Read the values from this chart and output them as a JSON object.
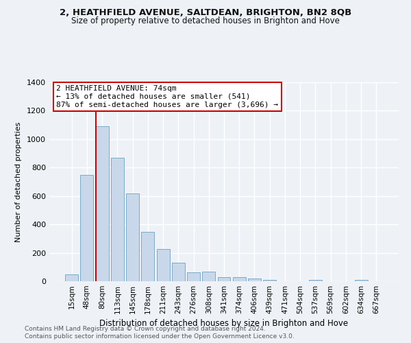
{
  "title": "2, HEATHFIELD AVENUE, SALTDEAN, BRIGHTON, BN2 8QB",
  "subtitle": "Size of property relative to detached houses in Brighton and Hove",
  "xlabel": "Distribution of detached houses by size in Brighton and Hove",
  "ylabel": "Number of detached properties",
  "footer_line1": "Contains HM Land Registry data © Crown copyright and database right 2024.",
  "footer_line2": "Contains public sector information licensed under the Open Government Licence v3.0.",
  "bar_labels": [
    "15sqm",
    "48sqm",
    "80sqm",
    "113sqm",
    "145sqm",
    "178sqm",
    "211sqm",
    "243sqm",
    "276sqm",
    "308sqm",
    "341sqm",
    "374sqm",
    "406sqm",
    "439sqm",
    "471sqm",
    "504sqm",
    "537sqm",
    "569sqm",
    "602sqm",
    "634sqm",
    "667sqm"
  ],
  "bar_values": [
    50,
    750,
    1090,
    870,
    620,
    350,
    225,
    130,
    65,
    70,
    30,
    30,
    20,
    12,
    0,
    0,
    12,
    0,
    0,
    12,
    0
  ],
  "bar_color": "#c8d8ea",
  "bar_edge_color": "#7aaac8",
  "background_color": "#eef2f7",
  "grid_color": "#ffffff",
  "ylim": [
    0,
    1400
  ],
  "yticks": [
    0,
    200,
    400,
    600,
    800,
    1000,
    1200,
    1400
  ],
  "annotation_title": "2 HEATHFIELD AVENUE: 74sqm",
  "annotation_line1": "← 13% of detached houses are smaller (541)",
  "annotation_line2": "87% of semi-detached houses are larger (3,696) →",
  "vline_color": "#cc0000",
  "box_edge_color": "#cc0000",
  "vline_bar_index": 2
}
